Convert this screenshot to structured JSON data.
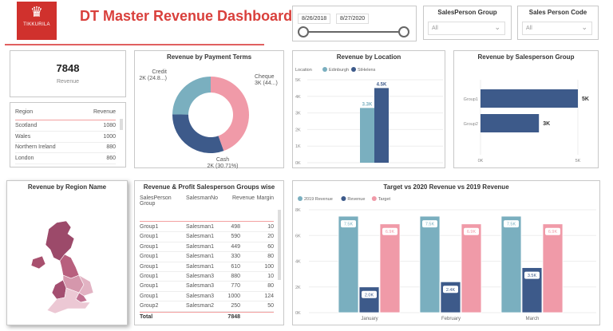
{
  "header": {
    "title": "DT Master Revenue Dashboard",
    "logo_text": "TIKKURILA"
  },
  "date_slicer": {
    "start": "8/26/2018",
    "end": "8/27/2020"
  },
  "slicers": [
    {
      "title": "SalesPerson Group",
      "value": "All"
    },
    {
      "title": "Sales Person Code",
      "value": "All"
    }
  ],
  "kpi": {
    "value": "7848",
    "label": "Revenue"
  },
  "region_table": {
    "columns": [
      "Region",
      "Revenue"
    ],
    "rows": [
      [
        "Scotland",
        "1080"
      ],
      [
        "Wales",
        "1000"
      ],
      [
        "Northern Ireland",
        "880"
      ],
      [
        "London",
        "860"
      ]
    ]
  },
  "map": {
    "title": "Revenue by Region Name"
  },
  "sp_table": {
    "title": "Revenue & Profit Salesperson Groups wise",
    "columns": [
      "SalesPerson Group",
      "SalesmanNo",
      "Revenue",
      "Margin"
    ],
    "rows": [
      [
        "Group1",
        "Salesman1",
        "498",
        "10"
      ],
      [
        "Group1",
        "Salesman1",
        "590",
        "20"
      ],
      [
        "Group1",
        "Salesman1",
        "449",
        "60"
      ],
      [
        "Group1",
        "Salesman1",
        "330",
        "80"
      ],
      [
        "Group1",
        "Salesman1",
        "610",
        "100"
      ],
      [
        "Group1",
        "Salesman3",
        "880",
        "10"
      ],
      [
        "Group1",
        "Salesman3",
        "770",
        "80"
      ],
      [
        "Group1",
        "Salesman3",
        "1000",
        "124"
      ],
      [
        "Group2",
        "Salesman2",
        "250",
        "50"
      ]
    ],
    "total_label": "Total",
    "total_value": "7848"
  },
  "colors": {
    "brand": "#d0312d",
    "teal": "#7aafbf",
    "navy": "#3d5a8a",
    "pink": "#f09aa8"
  },
  "chart_data": [
    {
      "type": "pie",
      "title": "Revenue by Payment Terms",
      "donut": true,
      "slices": [
        {
          "name": "Cheque",
          "percent": 44.49,
          "label": "3K (44...)",
          "color": "#f09aa8"
        },
        {
          "name": "Cash",
          "percent": 30.71,
          "label": "2K (30.71%)",
          "color": "#3d5a8a"
        },
        {
          "name": "Credit",
          "percent": 24.8,
          "label": "2K (24.8...)",
          "color": "#7aafbf"
        }
      ]
    },
    {
      "type": "bar",
      "title": "Revenue by Location",
      "legend_title": "Location",
      "ylim": [
        0,
        5000
      ],
      "yticks": [
        "0K",
        "1K",
        "2K",
        "3K",
        "4K",
        "5K"
      ],
      "series": [
        {
          "name": "Edinburgh",
          "values": [
            3300
          ],
          "label": "3.3K",
          "color": "#7aafbf"
        },
        {
          "name": "StHelens",
          "values": [
            4500
          ],
          "label": "4.5K",
          "color": "#3d5a8a"
        }
      ]
    },
    {
      "type": "bar",
      "orientation": "horizontal",
      "title": "Revenue by Salesperson Group",
      "categories": [
        "Group1",
        "Group2"
      ],
      "values": [
        5000,
        3000
      ],
      "labels": [
        "5K",
        "3K"
      ],
      "xlim": [
        0,
        5000
      ],
      "xticks": [
        "0K",
        "5K"
      ]
    },
    {
      "type": "bar",
      "title": "Target vs 2020 Revenue vs 2019 Revenue",
      "categories": [
        "January",
        "February",
        "March"
      ],
      "ylim": [
        0,
        8000
      ],
      "yticks": [
        "0K",
        "2K",
        "4K",
        "6K",
        "8K"
      ],
      "series": [
        {
          "name": "2019 Revenue",
          "values": [
            7500,
            7500,
            7500
          ],
          "labels": [
            "7.5K",
            "7.5K",
            "7.5K"
          ],
          "color": "#7aafbf"
        },
        {
          "name": "Revenue",
          "values": [
            2000,
            2400,
            3500
          ],
          "labels": [
            "2.0K",
            "2.4K",
            "3.5K"
          ],
          "color": "#3d5a8a"
        },
        {
          "name": "Target",
          "values": [
            6900,
            6900,
            6900
          ],
          "labels": [
            "6.9K",
            "6.9K",
            "6.9K"
          ],
          "color": "#f09aa8"
        }
      ]
    }
  ]
}
